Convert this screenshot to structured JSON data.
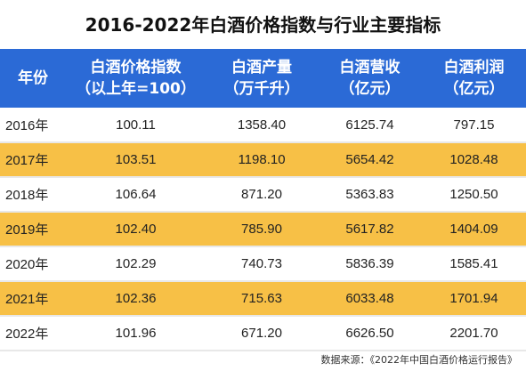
{
  "title": "2016-2022年白酒价格指数与行业主要指标",
  "table": {
    "headers": [
      {
        "line1": "年份",
        "line2": ""
      },
      {
        "line1": "白酒价格指数",
        "line2": "（以上年=100）"
      },
      {
        "line1": "白酒产量",
        "line2": "（万千升）"
      },
      {
        "line1": "白酒营收",
        "line2": "（亿元）"
      },
      {
        "line1": "白酒利润",
        "line2": "（亿元）"
      }
    ],
    "rows": [
      [
        "2016年",
        "100.11",
        "1358.40",
        "6125.74",
        "797.15"
      ],
      [
        "2017年",
        "103.51",
        "1198.10",
        "5654.42",
        "1028.48"
      ],
      [
        "2018年",
        "106.64",
        "871.20",
        "5363.83",
        "1250.50"
      ],
      [
        "2019年",
        "102.40",
        "785.90",
        "5617.82",
        "1404.09"
      ],
      [
        "2020年",
        "102.29",
        "740.73",
        "5836.39",
        "1585.41"
      ],
      [
        "2021年",
        "102.36",
        "715.63",
        "6033.48",
        "1701.94"
      ],
      [
        "2022年",
        "101.96",
        "671.20",
        "6626.50",
        "2201.70"
      ]
    ]
  },
  "source": "数据来源：《2022年中国白酒价格运行报告》",
  "colors": {
    "header_bg": "#2b6ad6",
    "row_highlight": "#f7c046",
    "row_plain": "#ffffff"
  }
}
